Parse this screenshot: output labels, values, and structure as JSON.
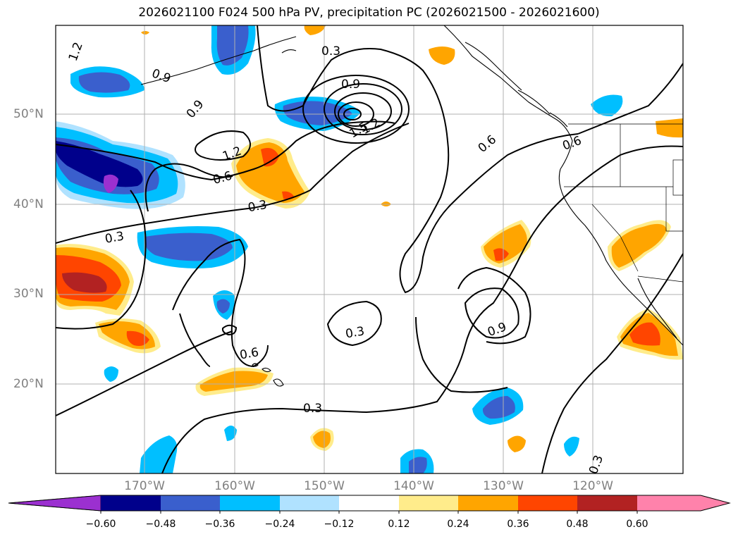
{
  "title": "2026021100 F024 500 hPa PV, precipitation PC (2026021500 - 2026021600)",
  "map": {
    "lat_labels": [
      "50°N",
      "40°N",
      "30°N",
      "20°N"
    ],
    "lat_values": [
      50,
      40,
      30,
      20
    ],
    "lon_labels": [
      "170°W",
      "160°W",
      "150°W",
      "140°W",
      "130°W",
      "120°W"
    ],
    "lon_values": [
      -170,
      -160,
      -150,
      -140,
      -130,
      -120
    ],
    "extent": {
      "lon": [
        -180,
        -110
      ],
      "lat": [
        10,
        60
      ]
    },
    "contour_labels": [
      "1.2",
      "0.9",
      "0.3",
      "0.9",
      "0.9",
      "1.5",
      "1.2",
      "1.2",
      "0.6",
      "0.6",
      "0.3",
      "0.3",
      "0.3",
      "0.6",
      "0.9",
      "0.3",
      "0.6",
      "0.3"
    ]
  },
  "colorbar": {
    "ticks": [
      "−0.60",
      "−0.48",
      "−0.36",
      "−0.24",
      "−0.12",
      "0.12",
      "0.24",
      "0.36",
      "0.48",
      "0.60"
    ],
    "colors": [
      "#9b30d0",
      "#00008b",
      "#3a5fcd",
      "#00bfff",
      "#b0e2ff",
      "#ffffff",
      "#ffec8b",
      "#ffa500",
      "#ff4500",
      "#b22222",
      "#ff82ab"
    ]
  },
  "colors": {
    "neg_strong": "#3a5fcd",
    "neg_mid": "#00bfff",
    "neg_light": "#b0e2ff",
    "neg_dark": "#00008b",
    "neg_extreme": "#9b30d0",
    "pos_light": "#ffec8b",
    "pos_mid": "#ffa500",
    "pos_strong": "#ff4500",
    "pos_dark": "#b22222",
    "pos_extreme": "#ff82ab"
  }
}
